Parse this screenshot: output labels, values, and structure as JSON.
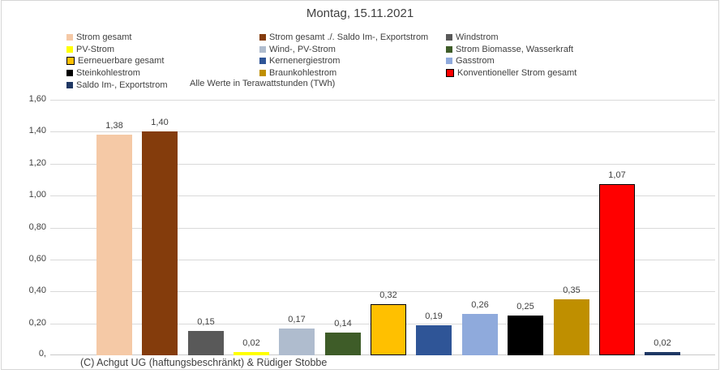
{
  "note": "Alle Werte in Terawattstunden (TWh)",
  "footer": "(C) Achgut UG (haftungsbeschränkt) & Rüdiger Stobbe",
  "chart_data": {
    "type": "bar",
    "title": "Montag, 15.11.2021",
    "unit_note": "Alle Werte in Terawattstunden (TWh)",
    "xlabel": "",
    "ylabel": "",
    "ylim": [
      0,
      1.6
    ],
    "ytick_step": 0.2,
    "ytick_labels": [
      "0,",
      "0,20",
      "0,40",
      "0,60",
      "0,80",
      "1,00",
      "1,20",
      "1,40",
      "1,60"
    ],
    "grid": true,
    "legend_position": "top",
    "legend_columns": 3,
    "series": [
      {
        "name": "Strom gesamt",
        "value": 1.38,
        "label": "1,38",
        "color": "#F5C9A6"
      },
      {
        "name": "Strom gesamt ./. Saldo Im-, Exportstrom",
        "value": 1.4,
        "label": "1,40",
        "color": "#843C0C"
      },
      {
        "name": "Windstrom",
        "value": 0.15,
        "label": "0,15",
        "color": "#595959"
      },
      {
        "name": "PV-Strom",
        "value": 0.02,
        "label": "0,02",
        "color": "#FFFF00"
      },
      {
        "name": "Wind-, PV-Strom",
        "value": 0.17,
        "label": "0,17",
        "color": "#AFBCCE"
      },
      {
        "name": "Strom Biomasse, Wasserkraft",
        "value": 0.14,
        "label": "0,14",
        "color": "#3E5C28"
      },
      {
        "name": "Eerneuerbare gesamt",
        "value": 0.32,
        "label": "0,32",
        "color": "#FFC000",
        "outlined": true
      },
      {
        "name": "Kernenergiestrom",
        "value": 0.19,
        "label": "0,19",
        "color": "#2F5597"
      },
      {
        "name": "Gasstrom",
        "value": 0.26,
        "label": "0,26",
        "color": "#8FAADC"
      },
      {
        "name": "Steinkohlestrom",
        "value": 0.25,
        "label": "0,25",
        "color": "#000000"
      },
      {
        "name": "Braunkohlestrom",
        "value": 0.35,
        "label": "0,35",
        "color": "#BF8F00"
      },
      {
        "name": "Konventioneller Strom gesamt",
        "value": 1.07,
        "label": "1,07",
        "color": "#FF0000",
        "outlined": true
      },
      {
        "name": "Saldo Im-, Exportstrom",
        "value": 0.02,
        "label": "0,02",
        "color": "#1F3864"
      }
    ]
  }
}
